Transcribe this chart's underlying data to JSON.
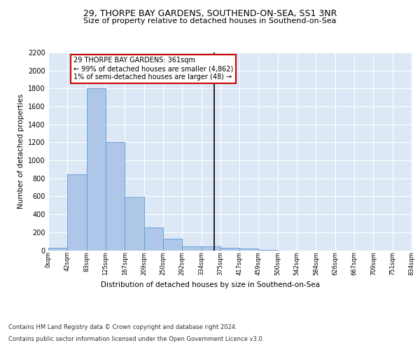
{
  "title": "29, THORPE BAY GARDENS, SOUTHEND-ON-SEA, SS1 3NR",
  "subtitle": "Size of property relative to detached houses in Southend-on-Sea",
  "xlabel": "Distribution of detached houses by size in Southend-on-Sea",
  "ylabel": "Number of detached properties",
  "bar_values": [
    25,
    845,
    1800,
    1205,
    595,
    255,
    130,
    45,
    45,
    30,
    20,
    5,
    0,
    0,
    0,
    0,
    0,
    0,
    0
  ],
  "bin_labels": [
    "0sqm",
    "42sqm",
    "83sqm",
    "125sqm",
    "167sqm",
    "209sqm",
    "250sqm",
    "292sqm",
    "334sqm",
    "375sqm",
    "417sqm",
    "459sqm",
    "500sqm",
    "542sqm",
    "584sqm",
    "626sqm",
    "667sqm",
    "709sqm",
    "751sqm",
    "834sqm"
  ],
  "bar_color": "#aec6e8",
  "bar_edge_color": "#5b9bd5",
  "property_line_color": "#000000",
  "annotation_text": "29 THORPE BAY GARDENS: 361sqm\n← 99% of detached houses are smaller (4,862)\n1% of semi-detached houses are larger (48) →",
  "annotation_box_color": "#ffffff",
  "annotation_box_edge_color": "#cc0000",
  "background_color": "#dce8f5",
  "grid_color": "#ffffff",
  "ylim": [
    0,
    2200
  ],
  "yticks": [
    0,
    200,
    400,
    600,
    800,
    1000,
    1200,
    1400,
    1600,
    1800,
    2000,
    2200
  ],
  "footer_line1": "Contains HM Land Registry data © Crown copyright and database right 2024.",
  "footer_line2": "Contains public sector information licensed under the Open Government Licence v3.0."
}
